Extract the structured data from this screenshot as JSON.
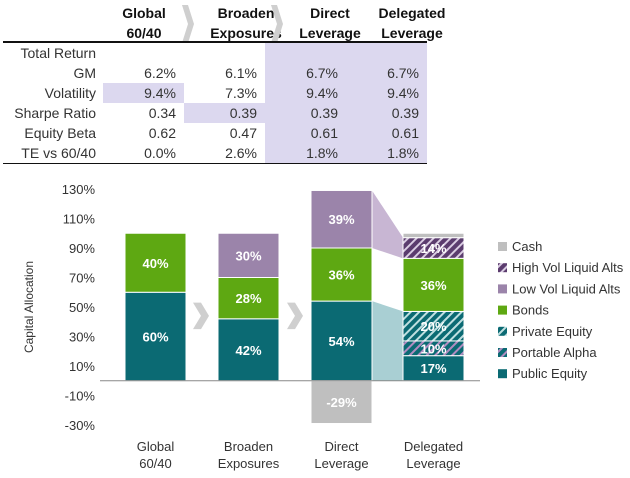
{
  "table": {
    "columns": [
      "Global 60/40",
      "Broaden Exposures",
      "Direct Leverage",
      "Delegated Leverage"
    ],
    "column_lines": [
      [
        "Global",
        "60/40"
      ],
      [
        "Broaden",
        "Exposures"
      ],
      [
        "Direct",
        "Leverage"
      ],
      [
        "Delegated",
        "Leverage"
      ]
    ],
    "rows": [
      {
        "label": "Total Return",
        "values": [
          "",
          "",
          "",
          ""
        ]
      },
      {
        "label": "GM",
        "values": [
          "6.2%",
          "6.1%",
          "6.7%",
          "6.7%"
        ]
      },
      {
        "label": "Volatility",
        "values": [
          "9.4%",
          "7.3%",
          "9.4%",
          "9.4%"
        ]
      },
      {
        "label": "Sharpe Ratio",
        "values": [
          "0.34",
          "0.39",
          "0.39",
          "0.39"
        ]
      },
      {
        "label": "Equity Beta",
        "values": [
          "0.62",
          "0.47",
          "0.61",
          "0.61"
        ]
      },
      {
        "label": "TE vs 60/40",
        "values": [
          "0.0%",
          "2.6%",
          "1.8%",
          "1.8%"
        ]
      }
    ],
    "highlight_color": "#dcd8ef"
  },
  "chart_data": {
    "type": "bar",
    "stacked": true,
    "ylabel": "Capital Allocation",
    "ylim": [
      -30,
      130
    ],
    "yticks": [
      "130%",
      "110%",
      "90%",
      "70%",
      "50%",
      "30%",
      "10%",
      "-10%",
      "-30%"
    ],
    "categories": [
      [
        "Global",
        "60/40"
      ],
      [
        "Broaden",
        "Exposures"
      ],
      [
        "Direct",
        "Leverage"
      ],
      [
        "Delegated",
        "Leverage"
      ]
    ],
    "legend_position": "right",
    "series": [
      {
        "name": "Public Equity",
        "color": "#0b6a73",
        "pattern": "solid",
        "values": [
          60,
          42,
          54,
          17
        ]
      },
      {
        "name": "Portable Alpha",
        "color": "#0b6a73",
        "pattern": "stripes-purple",
        "values": [
          0,
          0,
          0,
          10
        ]
      },
      {
        "name": "Private Equity",
        "color": "#0b6a73",
        "pattern": "stripes",
        "values": [
          0,
          0,
          0,
          20
        ]
      },
      {
        "name": "Bonds",
        "color": "#5ea812",
        "pattern": "solid",
        "values": [
          40,
          28,
          36,
          36
        ]
      },
      {
        "name": "Low Vol Liquid Alts",
        "color": "#9b84aa",
        "pattern": "solid",
        "values": [
          0,
          30,
          39,
          0
        ]
      },
      {
        "name": "High Vol Liquid Alts",
        "color": "#5b3c6e",
        "pattern": "stripes",
        "values": [
          0,
          0,
          0,
          14
        ]
      },
      {
        "name": "Cash",
        "color": "#bfbfbf",
        "pattern": "solid",
        "values": [
          0,
          0,
          -29,
          3
        ]
      }
    ],
    "labels": [
      [
        "60%",
        "",
        "",
        "40%",
        "",
        "",
        ""
      ],
      [
        "42%",
        "",
        "",
        "28%",
        "30%",
        "",
        ""
      ],
      [
        "54%",
        "",
        "",
        "36%",
        "39%",
        "",
        "-29%"
      ],
      [
        "17%",
        "10%",
        "20%",
        "36%",
        "",
        "14%",
        ""
      ]
    ],
    "legend_order": [
      "Cash",
      "High Vol Liquid Alts",
      "Low Vol Liquid Alts",
      "Bonds",
      "Private Equity",
      "Portable Alpha",
      "Public Equity"
    ]
  }
}
